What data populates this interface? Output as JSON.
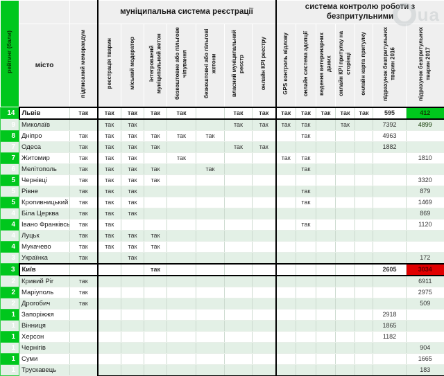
{
  "watermark": {
    "text": "ua"
  },
  "colors": {
    "accent_green": "#00c71d",
    "highlight_green": "#00c71d",
    "highlight_red": "#e00000",
    "row_stripe": "#e3f0e6",
    "header_bg": "#efefef"
  },
  "table": {
    "rating_header": "рейтинг (бали)",
    "city_header": "місто",
    "memo_header": "підписаний меморандум",
    "yes_label": "так",
    "group1": {
      "label": "муніципальна система реєстрації",
      "columns": [
        "реєстрація тварин",
        "міський модератор",
        "інтегрований муніципальний жетон",
        "безкоштовне або пільгове чіпування",
        "безкоштовні або пільгові жетони",
        "власний муніципальний реєстр",
        "онлайн КРІ реєстру"
      ]
    },
    "group2": {
      "label": "система контролю роботи з безпритульними",
      "columns": [
        "GPS контроль відлову",
        "онлайн система адопції",
        "ведення ветеринарних даних",
        "онлайн КРІ притулку на сторінці",
        "онлайн карта притулку",
        "підрахунок безпритульних тварин 2016",
        "підрахунок безпритульних тварин 2017"
      ]
    },
    "rows": [
      {
        "rating": "14",
        "city": "Львів",
        "bold": true,
        "outline": true,
        "hl2017": "green",
        "values": [
          "так",
          "так",
          "так",
          "так",
          "так",
          "",
          "так",
          "так",
          "так",
          "так",
          "так",
          "так",
          "так",
          "595",
          "412"
        ]
      },
      {
        "rating": "9",
        "city": "Миколаїв",
        "hl2017": "green",
        "values": [
          "",
          "так",
          "так",
          "",
          "",
          "",
          "так",
          "так",
          "так",
          "так",
          "",
          "так",
          "",
          "7392",
          "4899"
        ]
      },
      {
        "rating": "8",
        "city": "Дніпро",
        "values": [
          "так",
          "так",
          "так",
          "так",
          "так",
          "так",
          "",
          "",
          "",
          "так",
          "",
          "",
          "",
          "4963",
          ""
        ]
      },
      {
        "rating": "7",
        "city": "Одеса",
        "values": [
          "так",
          "так",
          "так",
          "так",
          "",
          "",
          "так",
          "так",
          "",
          "",
          "",
          "",
          "",
          "1882",
          ""
        ]
      },
      {
        "rating": "7",
        "city": "Житомир",
        "values": [
          "так",
          "так",
          "так",
          "",
          "так",
          "",
          "",
          "",
          "так",
          "так",
          "",
          "",
          "",
          "",
          "1810"
        ]
      },
      {
        "rating": "6",
        "city": "Мелітополь",
        "values": [
          "так",
          "так",
          "так",
          "так",
          "",
          "так",
          "",
          "",
          "",
          "так",
          "",
          "",
          "",
          "",
          ""
        ]
      },
      {
        "rating": "5",
        "city": "Чернівці",
        "values": [
          "так",
          "так",
          "так",
          "так",
          "",
          "",
          "",
          "",
          "",
          "",
          "",
          "",
          "",
          "",
          "3320"
        ]
      },
      {
        "rating": "5",
        "city": "Рівне",
        "values": [
          "так",
          "так",
          "так",
          "",
          "",
          "",
          "",
          "",
          "",
          "так",
          "",
          "",
          "",
          "",
          "879"
        ]
      },
      {
        "rating": "5",
        "city": "Кропивницький",
        "values": [
          "так",
          "так",
          "так",
          "",
          "",
          "",
          "",
          "",
          "",
          "так",
          "",
          "",
          "",
          "",
          "1469"
        ]
      },
      {
        "rating": "4",
        "city": "Біла Церква",
        "values": [
          "так",
          "так",
          "так",
          "",
          "",
          "",
          "",
          "",
          "",
          "",
          "",
          "",
          "",
          "",
          "869"
        ]
      },
      {
        "rating": "4",
        "city": "Івано Франківськ",
        "values": [
          "так",
          "так",
          "",
          "",
          "",
          "",
          "",
          "",
          "",
          "так",
          "",
          "",
          "",
          "",
          "1120"
        ]
      },
      {
        "rating": "4",
        "city": "Луцьк",
        "values": [
          "так",
          "так",
          "так",
          "так",
          "",
          "",
          "",
          "",
          "",
          "",
          "",
          "",
          "",
          "",
          ""
        ]
      },
      {
        "rating": "4",
        "city": "Мукачево",
        "values": [
          "так",
          "так",
          "так",
          "так",
          "",
          "",
          "",
          "",
          "",
          "",
          "",
          "",
          "",
          "",
          ""
        ]
      },
      {
        "rating": "3",
        "city": "Українка",
        "values": [
          "так",
          "",
          "так",
          "",
          "",
          "",
          "",
          "",
          "",
          "",
          "",
          "",
          "",
          "",
          "172"
        ]
      },
      {
        "rating": "3",
        "city": "Київ",
        "bold": true,
        "outline": true,
        "hl2017": "red",
        "values": [
          "",
          "",
          "",
          "так",
          "",
          "",
          "",
          "",
          "",
          "",
          "",
          "",
          "",
          "2605",
          "3034"
        ]
      },
      {
        "rating": "2",
        "city": "Кривий Ріг",
        "values": [
          "так",
          "",
          "",
          "",
          "",
          "",
          "",
          "",
          "",
          "",
          "",
          "",
          "",
          "",
          "6911"
        ]
      },
      {
        "rating": "2",
        "city": "Маріуполь",
        "values": [
          "так",
          "",
          "",
          "",
          "",
          "",
          "",
          "",
          "",
          "",
          "",
          "",
          "",
          "",
          "2975"
        ]
      },
      {
        "rating": "2",
        "city": "Дрогобич",
        "values": [
          "так",
          "",
          "",
          "",
          "",
          "",
          "",
          "",
          "",
          "",
          "",
          "",
          "",
          "",
          "509"
        ]
      },
      {
        "rating": "1",
        "city": "Запоріжжя",
        "values": [
          "",
          "",
          "",
          "",
          "",
          "",
          "",
          "",
          "",
          "",
          "",
          "",
          "",
          "2918",
          ""
        ]
      },
      {
        "rating": "1",
        "city": "Вінниця",
        "values": [
          "",
          "",
          "",
          "",
          "",
          "",
          "",
          "",
          "",
          "",
          "",
          "",
          "",
          "1865",
          ""
        ]
      },
      {
        "rating": "1",
        "city": "Херсон",
        "values": [
          "",
          "",
          "",
          "",
          "",
          "",
          "",
          "",
          "",
          "",
          "",
          "",
          "",
          "1182",
          ""
        ]
      },
      {
        "rating": "1",
        "city": "Чернігів",
        "values": [
          "",
          "",
          "",
          "",
          "",
          "",
          "",
          "",
          "",
          "",
          "",
          "",
          "",
          "",
          "904"
        ]
      },
      {
        "rating": "1",
        "city": "Суми",
        "values": [
          "",
          "",
          "",
          "",
          "",
          "",
          "",
          "",
          "",
          "",
          "",
          "",
          "",
          "",
          "1665"
        ]
      },
      {
        "rating": "1",
        "city": "Трускавець",
        "values": [
          "",
          "",
          "",
          "",
          "",
          "",
          "",
          "",
          "",
          "",
          "",
          "",
          "",
          "",
          "183"
        ]
      }
    ]
  }
}
